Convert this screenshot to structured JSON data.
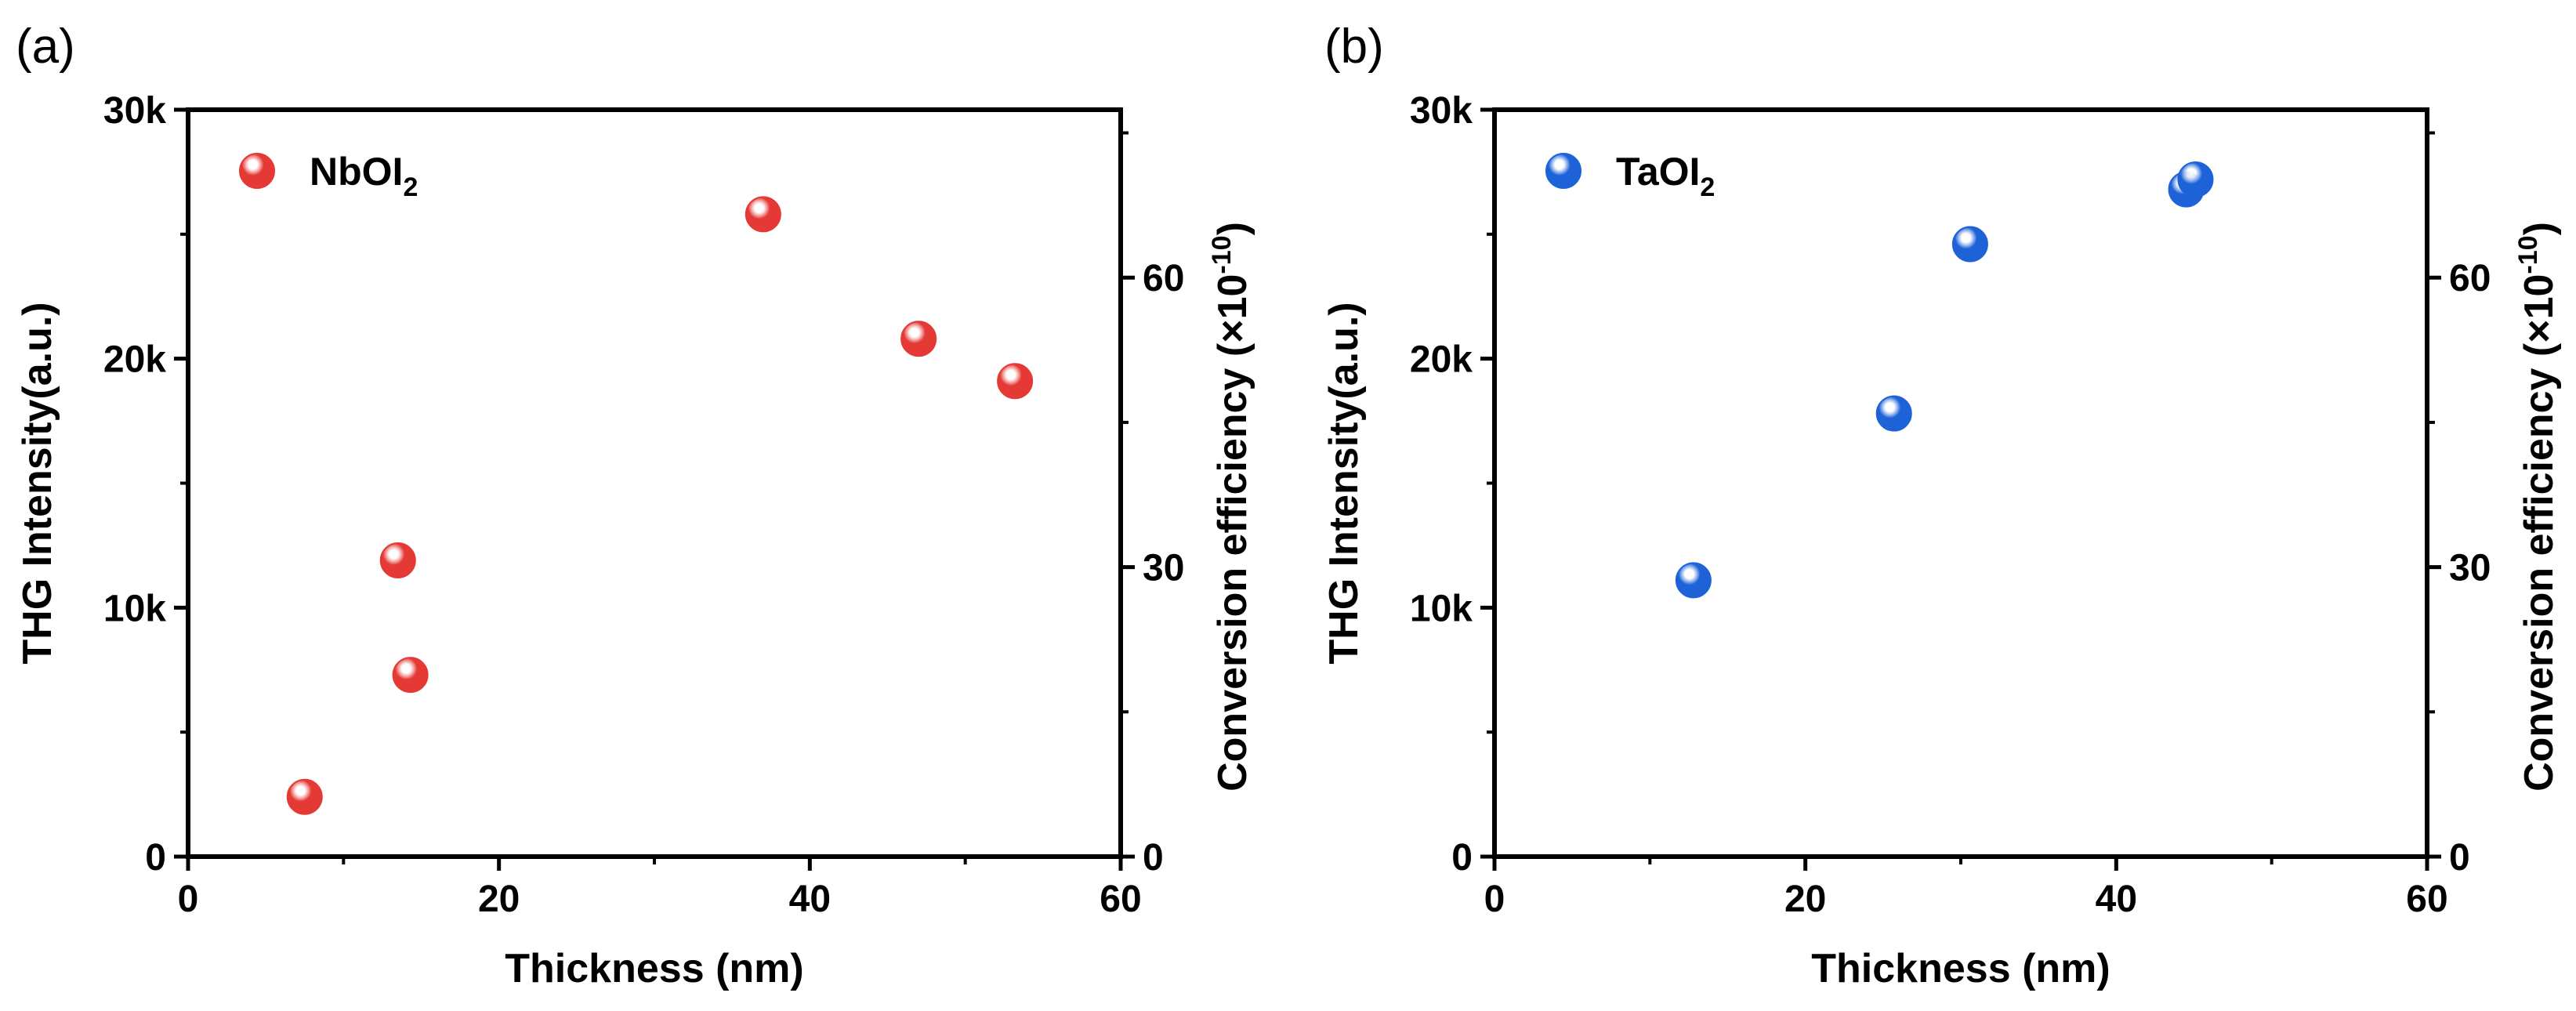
{
  "chart_data": [
    {
      "type": "scatter",
      "panel_label": "(a)",
      "xlabel": "Thickness (nm)",
      "ylabel": "THG Intensity(a.u.)",
      "y2label": "Conversion efficiency (×10",
      "y2label_exp": "-10",
      "y2label_close": ")",
      "xlim": [
        0,
        60
      ],
      "ylim": [
        0,
        30000
      ],
      "y2lim": [
        0,
        77.4
      ],
      "xticks": [
        0,
        20,
        40,
        60
      ],
      "yticks": [
        0,
        10000,
        20000,
        30000
      ],
      "ytick_labels": [
        "0",
        "10k",
        "20k",
        "30k"
      ],
      "y2ticks": [
        0,
        30,
        60
      ],
      "y2tick_labels": [
        "0",
        "30",
        "60"
      ],
      "legend_position": "top-left",
      "series": [
        {
          "name": "NbOI",
          "name_sub": "2",
          "color": "#e53935",
          "x": [
            7.5,
            13.5,
            14.3,
            37.0,
            47.0,
            53.2
          ],
          "y": [
            2400,
            11900,
            7300,
            25800,
            20800,
            19100
          ]
        }
      ]
    },
    {
      "type": "scatter",
      "panel_label": "(b)",
      "xlabel": "Thickness (nm)",
      "ylabel": "THG Intensity(a.u.)",
      "y2label": "Conversion efficiency (×10",
      "y2label_exp": "-10",
      "y2label_close": ")",
      "xlim": [
        0,
        60
      ],
      "ylim": [
        0,
        30000
      ],
      "y2lim": [
        0,
        77.4
      ],
      "xticks": [
        0,
        20,
        40,
        60
      ],
      "yticks": [
        0,
        10000,
        20000,
        30000
      ],
      "ytick_labels": [
        "0",
        "10k",
        "20k",
        "30k"
      ],
      "y2ticks": [
        0,
        30,
        60
      ],
      "y2tick_labels": [
        "0",
        "30",
        "60"
      ],
      "legend_position": "top-left",
      "series": [
        {
          "name": "TaOI",
          "name_sub": "2",
          "color": "#1e62d8",
          "x": [
            12.8,
            25.7,
            30.6,
            44.5,
            45.1
          ],
          "y": [
            11100,
            17800,
            24600,
            26800,
            27200
          ]
        }
      ]
    }
  ]
}
